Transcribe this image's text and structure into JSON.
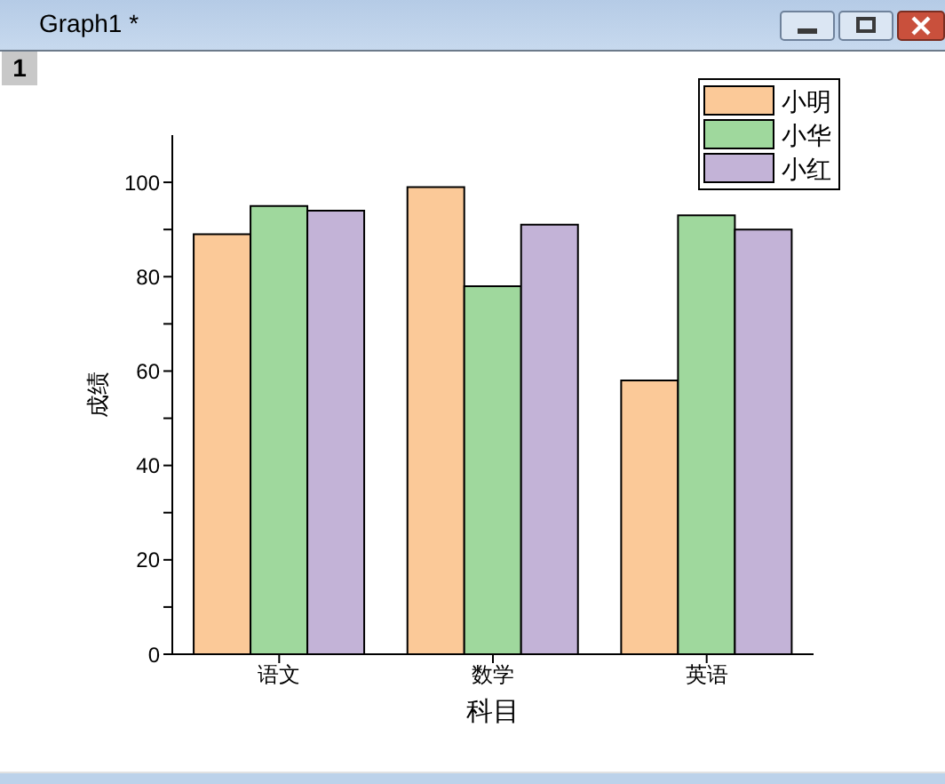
{
  "chart_data": {
    "type": "bar",
    "xlabel": "科目",
    "ylabel": "成绩",
    "annotations": [
      "Graph1 *",
      "1"
    ],
    "categories": [
      "语文",
      "数学",
      "英语"
    ],
    "series": [
      {
        "name": "小明",
        "color": "#fbc998",
        "values": [
          89,
          99,
          58
        ]
      },
      {
        "name": "小华",
        "color": "#9fd89d",
        "values": [
          95,
          78,
          93
        ]
      },
      {
        "name": "小红",
        "color": "#c3b3d7",
        "values": [
          94,
          91,
          90
        ]
      }
    ],
    "ylim": [
      0,
      110
    ],
    "yticks": [
      0,
      {
        "value": 10,
        "label": null
      },
      20,
      {
        "value": 30,
        "label": null
      },
      40,
      {
        "value": 50,
        "label": null
      },
      60,
      {
        "value": 70,
        "label": null
      },
      80,
      {
        "value": 90,
        "label": null
      },
      100
    ],
    "grid": false,
    "legend": "top right"
  }
}
